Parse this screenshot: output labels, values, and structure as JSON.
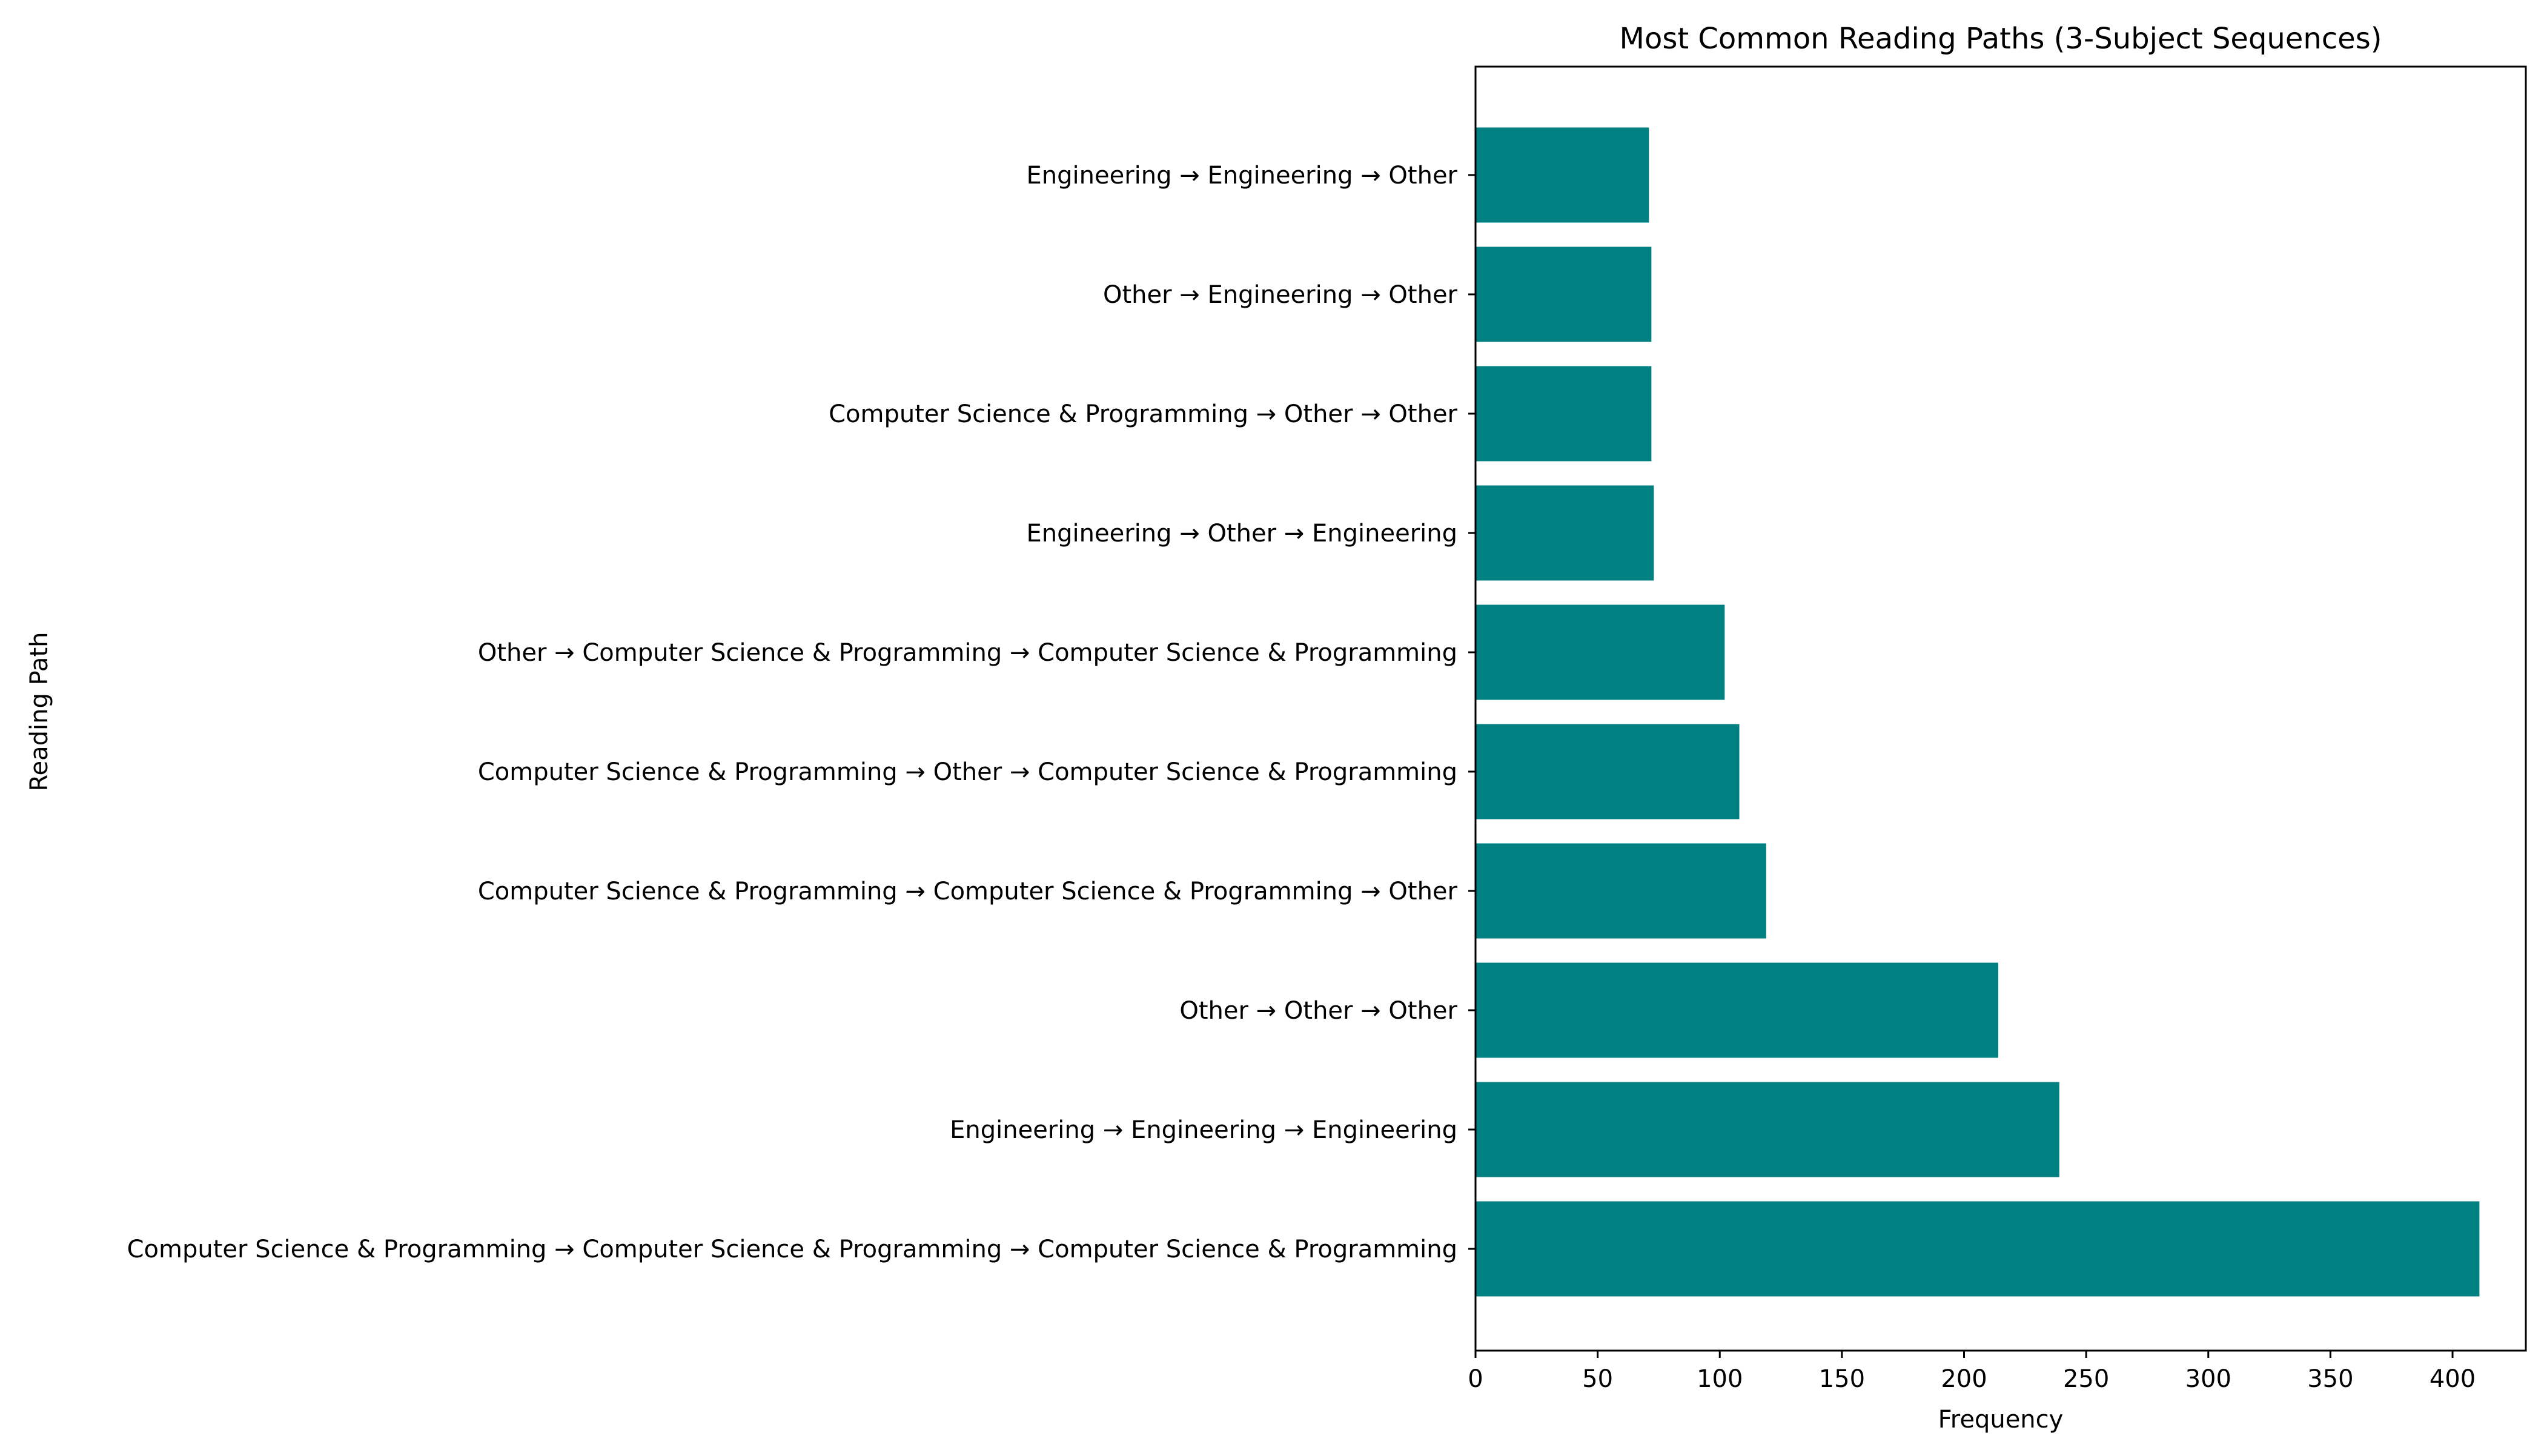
{
  "chart_data": {
    "type": "bar",
    "orientation": "horizontal",
    "title": "Most Common Reading Paths (3-Subject Sequences)",
    "xlabel": "Frequency",
    "ylabel": "Reading Path",
    "xlim": [
      0,
      430
    ],
    "xticks": [
      0,
      50,
      100,
      150,
      200,
      250,
      300,
      350,
      400
    ],
    "grid": false,
    "bar_color": "#008080",
    "categories": [
      "Computer Science & Programming → Computer Science & Programming → Computer Science & Programming",
      "Engineering → Engineering → Engineering",
      "Other → Other → Other",
      "Computer Science & Programming → Computer Science & Programming → Other",
      "Computer Science & Programming → Other → Computer Science & Programming",
      "Other → Computer Science & Programming → Computer Science & Programming",
      "Engineering → Other → Engineering",
      "Computer Science & Programming → Other → Other",
      "Other → Engineering → Other",
      "Engineering → Engineering → Other"
    ],
    "values": [
      411,
      239,
      214,
      119,
      108,
      102,
      73,
      72,
      72,
      71
    ]
  }
}
